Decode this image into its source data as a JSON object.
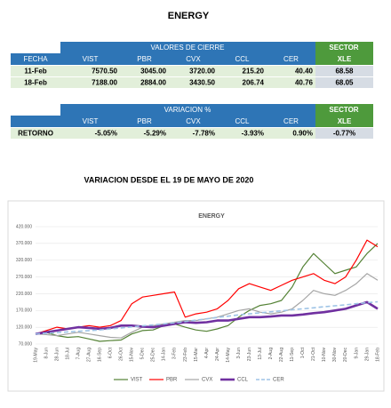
{
  "title": "ENERGY",
  "table1": {
    "group": "VALORES DE CIERRE",
    "sector": "SECTOR",
    "columns": [
      "FECHA",
      "VIST",
      "PBR",
      "CVX",
      "CCL",
      "CER",
      "XLE"
    ],
    "rows": [
      [
        "11-Feb",
        "7570.50",
        "3045.00",
        "3720.00",
        "215.20",
        "40.40",
        "68.58"
      ],
      [
        "18-Feb",
        "7188.00",
        "2884.00",
        "3430.50",
        "206.74",
        "40.76",
        "68.05"
      ]
    ]
  },
  "table2": {
    "group": "VARIACION %",
    "sector": "SECTOR",
    "columns": [
      "VIST",
      "PBR",
      "CVX",
      "CCL",
      "CER",
      "XLE"
    ],
    "rows": [
      [
        "RETORNO",
        "-5.05%",
        "-5.29%",
        "-7.78%",
        "-3.93%",
        "0.90%",
        "-0.77%"
      ]
    ]
  },
  "chart_data": {
    "type": "line",
    "subtitle": "VARIACION DESDE EL 19 DE MAYO DE 2020",
    "title": "ENERGY",
    "categories": [
      "19-May",
      "8-Jun",
      "28-Jun",
      "18-Jul",
      "7-Aug",
      "27-Aug",
      "16-Sep",
      "6-Oct",
      "26-Oct",
      "15-Nov",
      "5-Dec",
      "25-Dec",
      "14-Jan",
      "3-Feb",
      "23-Feb",
      "15-Mar",
      "4-Apr",
      "24-Apr",
      "14-May",
      "3-Jun",
      "23-Jun",
      "13-Jul",
      "2-Aug",
      "22-Aug",
      "11-Sep",
      "1-Oct",
      "21-Oct",
      "10-Nov",
      "30-Nov",
      "20-Dec",
      "9-Jan",
      "29-Jan",
      "18-Feb"
    ],
    "series": [
      {
        "name": "VIST",
        "color": "#548235",
        "width": 1.2,
        "dash": false,
        "values": [
          100,
          105,
          95,
          90,
          92,
          85,
          78,
          80,
          82,
          100,
          110,
          112,
          125,
          130,
          120,
          112,
          108,
          115,
          125,
          150,
          170,
          185,
          190,
          200,
          240,
          300,
          340,
          310,
          280,
          290,
          300,
          340,
          370
        ]
      },
      {
        "name": "PBR",
        "color": "#ff0000",
        "width": 1.2,
        "dash": false,
        "values": [
          100,
          110,
          120,
          115,
          120,
          125,
          120,
          125,
          140,
          190,
          210,
          215,
          220,
          225,
          150,
          160,
          165,
          175,
          200,
          235,
          250,
          240,
          230,
          245,
          260,
          270,
          280,
          260,
          250,
          270,
          320,
          380,
          360
        ]
      },
      {
        "name": "CVX",
        "color": "#a5a5a5",
        "width": 1.2,
        "dash": false,
        "values": [
          100,
          98,
          95,
          100,
          105,
          100,
          95,
          90,
          88,
          105,
          120,
          125,
          130,
          135,
          140,
          140,
          145,
          150,
          160,
          170,
          175,
          165,
          160,
          165,
          175,
          200,
          230,
          220,
          215,
          230,
          250,
          280,
          260
        ]
      },
      {
        "name": "CCL",
        "color": "#7030a0",
        "width": 2.6,
        "dash": false,
        "values": [
          100,
          105,
          110,
          115,
          120,
          118,
          115,
          118,
          125,
          125,
          122,
          120,
          125,
          130,
          135,
          133,
          135,
          140,
          140,
          145,
          150,
          150,
          152,
          155,
          155,
          158,
          162,
          165,
          170,
          175,
          185,
          195,
          175
        ]
      },
      {
        "name": "CER",
        "color": "#9dc3e6",
        "width": 1.6,
        "dash": true,
        "values": [
          100,
          102,
          104,
          106,
          108,
          110,
          112,
          115,
          118,
          121,
          124,
          127,
          130,
          133,
          137,
          141,
          145,
          149,
          153,
          157,
          160,
          163,
          166,
          169,
          172,
          175,
          178,
          181,
          184,
          187,
          190,
          193,
          196
        ]
      }
    ],
    "ylim": [
      70,
      420
    ],
    "yticks": [
      {
        "value": 70,
        "label": "70.000"
      },
      {
        "value": 120,
        "label": "120.000"
      },
      {
        "value": 170,
        "label": "170.000"
      },
      {
        "value": 220,
        "label": "220.000"
      },
      {
        "value": 270,
        "label": "270.000"
      },
      {
        "value": 320,
        "label": "320.000"
      },
      {
        "value": 370,
        "label": "370.000"
      },
      {
        "value": 420,
        "label": "420.000"
      }
    ],
    "grid": true
  }
}
